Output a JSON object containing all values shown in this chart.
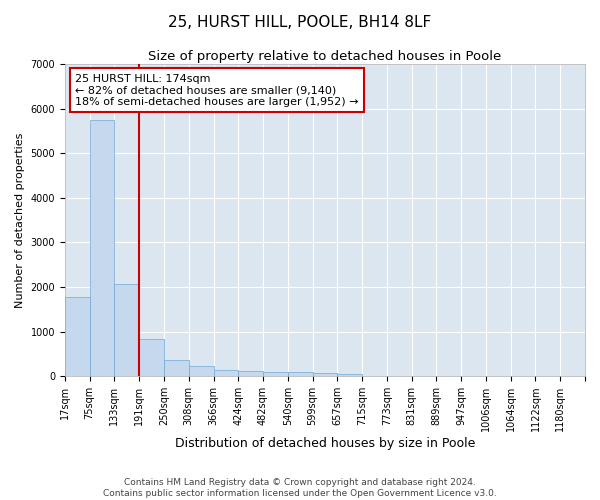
{
  "title1": "25, HURST HILL, POOLE, BH14 8LF",
  "title2": "Size of property relative to detached houses in Poole",
  "xlabel": "Distribution of detached houses by size in Poole",
  "ylabel": "Number of detached properties",
  "bar_values": [
    1780,
    5750,
    2060,
    830,
    360,
    220,
    130,
    110,
    95,
    90,
    75,
    60,
    0,
    0,
    0,
    0,
    0,
    0,
    0,
    0,
    0
  ],
  "bin_labels": [
    "17sqm",
    "75sqm",
    "133sqm",
    "191sqm",
    "250sqm",
    "308sqm",
    "366sqm",
    "424sqm",
    "482sqm",
    "540sqm",
    "599sqm",
    "657sqm",
    "715sqm",
    "773sqm",
    "831sqm",
    "889sqm",
    "947sqm",
    "1006sqm",
    "1064sqm",
    "1122sqm",
    "1180sqm"
  ],
  "bar_color": "#c5d8ed",
  "bar_edgecolor": "#6fa8d6",
  "background_color": "#dce6f1",
  "grid_color": "#ffffff",
  "vline_color": "#cc0000",
  "annotation_text": "25 HURST HILL: 174sqm\n← 82% of detached houses are smaller (9,140)\n18% of semi-detached houses are larger (1,952) →",
  "annotation_box_color": "#ffffff",
  "annotation_box_edgecolor": "#cc0000",
  "ylim": [
    0,
    7000
  ],
  "yticks": [
    0,
    1000,
    2000,
    3000,
    4000,
    5000,
    6000,
    7000
  ],
  "footer1": "Contains HM Land Registry data © Crown copyright and database right 2024.",
  "footer2": "Contains public sector information licensed under the Open Government Licence v3.0.",
  "title1_fontsize": 11,
  "title2_fontsize": 9.5,
  "xlabel_fontsize": 9,
  "ylabel_fontsize": 8,
  "tick_fontsize": 7,
  "annotation_fontsize": 8,
  "footer_fontsize": 6.5
}
